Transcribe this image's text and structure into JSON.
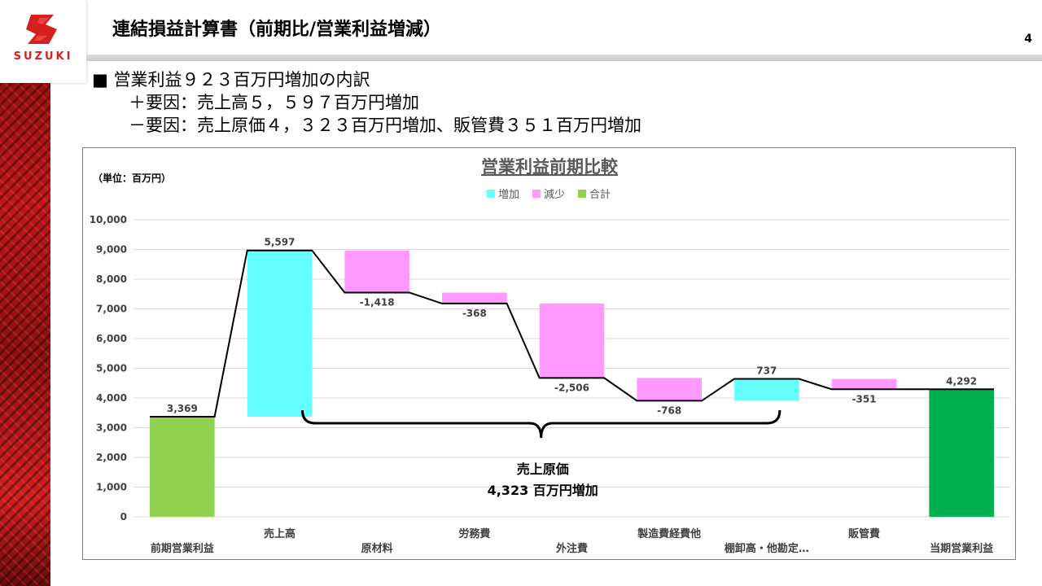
{
  "header": {
    "title": "連結損益計算書（前期比/営業利益増減）",
    "page_number": "4",
    "logo_text": "SUZUKI"
  },
  "summary": {
    "line1": "■ 営業利益９２３百万円増加の内訳",
    "line2": "＋要因：売上高５，５９７百万円増加",
    "line3": "－要因：売上原価４，３２３百万円増加、販管費３５１百万円増加"
  },
  "colors": {
    "increase": "#66FFFF",
    "decrease": "#FF99FF",
    "total_prev": "#92D050",
    "total_curr": "#00B050",
    "accent": "#D42020"
  },
  "chart_data": {
    "type": "bar",
    "subtype": "waterfall",
    "title": "営業利益前期比較",
    "unit_label": "（単位：百万円）",
    "legend": [
      "増加",
      "減少",
      "合計"
    ],
    "legend_position": "top",
    "ylim": [
      0,
      10000
    ],
    "y_ticks": [
      "0",
      "1,000",
      "2,000",
      "3,000",
      "4,000",
      "5,000",
      "6,000",
      "7,000",
      "8,000",
      "9,000",
      "10,000"
    ],
    "grid": true,
    "categories": [
      "前期営業利益",
      "売上高",
      "原材料",
      "労務費",
      "外注費",
      "製造費経費他",
      "棚卸高・他勘定…",
      "販管費",
      "当期営業利益"
    ],
    "values": [
      3369,
      5597,
      -1418,
      -368,
      -2506,
      -768,
      737,
      -351,
      4292
    ],
    "kinds": [
      "total",
      "increase",
      "decrease",
      "decrease",
      "decrease",
      "decrease",
      "increase",
      "decrease",
      "total"
    ],
    "value_labels": [
      "3,369",
      "5,597",
      "-1,418",
      "-368",
      "-2,506",
      "-768",
      "737",
      "-351",
      "4,292"
    ],
    "annotation": {
      "line1": "売上原価",
      "line2": "4,323 百万円増加"
    }
  }
}
